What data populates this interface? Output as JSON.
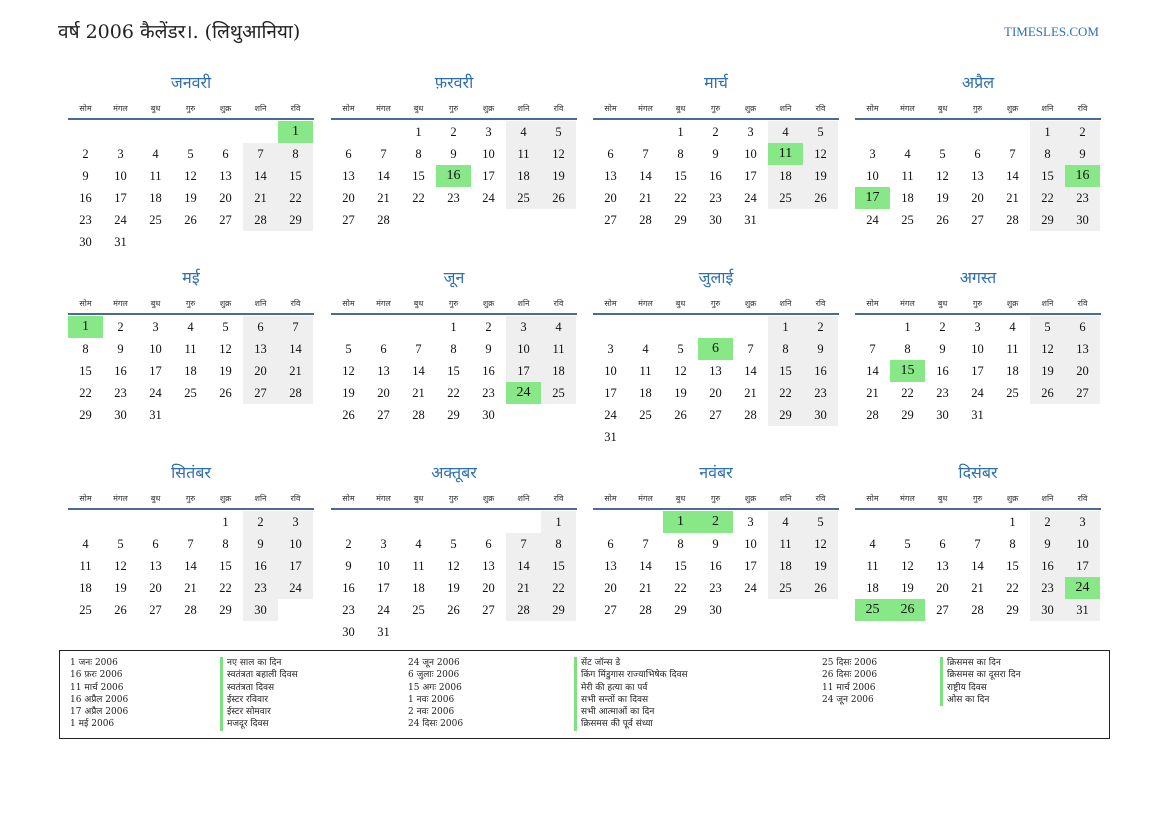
{
  "header": {
    "title": "वर्ष 2006 कैलेंडर।. (लिथुआनिया)",
    "brand": "TIMESLES.COM"
  },
  "weekdays": [
    "सोम",
    "मंगल",
    "बुध",
    "गुरु",
    "शुक्र",
    "शनि",
    "रवि"
  ],
  "months": [
    {
      "name": "जनवरी",
      "offset": 6,
      "days": 31,
      "holidays": [
        1
      ]
    },
    {
      "name": "फ़रवरी",
      "offset": 2,
      "days": 28,
      "holidays": [
        16
      ]
    },
    {
      "name": "मार्च",
      "offset": 2,
      "days": 31,
      "holidays": [
        11
      ]
    },
    {
      "name": "अप्रैल",
      "offset": 5,
      "days": 30,
      "holidays": [
        16,
        17
      ]
    },
    {
      "name": "मई",
      "offset": 0,
      "days": 31,
      "holidays": [
        1
      ]
    },
    {
      "name": "जून",
      "offset": 3,
      "days": 30,
      "holidays": [
        24
      ]
    },
    {
      "name": "जुलाई",
      "offset": 5,
      "days": 31,
      "holidays": [
        6
      ]
    },
    {
      "name": "अगस्त",
      "offset": 1,
      "days": 31,
      "holidays": [
        15
      ]
    },
    {
      "name": "सितंबर",
      "offset": 4,
      "days": 30,
      "holidays": []
    },
    {
      "name": "अक्तूबर",
      "offset": 6,
      "days": 31,
      "holidays": []
    },
    {
      "name": "नवंबर",
      "offset": 2,
      "days": 30,
      "holidays": [
        1,
        2
      ]
    },
    {
      "name": "दिसंबर",
      "offset": 4,
      "days": 31,
      "holidays": [
        24,
        25,
        26
      ]
    }
  ],
  "holiday_list": {
    "col1_dates": [
      "1 जनः 2006",
      "16 फ़रः 2006",
      "11 मार्च 2006",
      "16 अप्रैल 2006",
      "17 अप्रैल 2006",
      "1 मई 2006"
    ],
    "col1_names": [
      "नए साल का दिन",
      "स्वतंत्रता बहाली दिवस",
      "स्वतंत्रता दिवस",
      "ईस्टर रविवार",
      "ईस्टर सोमवार",
      "मजदूर दिवस"
    ],
    "col2_dates": [
      "24 जून 2006",
      "6 जुलाः 2006",
      "15 अगः 2006",
      "1 नवः 2006",
      "2 नवः 2006",
      "24 दिसः 2006"
    ],
    "col2_names": [
      "सेंट जॉन्स डे",
      "किंग मिंडुगास राज्याभिषेक दिवस",
      "मेरी की हत्या का पर्व",
      "सभी सन्तों का दिवस",
      "सभी आत्माओं का दिन",
      "क्रिसमस की पूर्व संध्या"
    ],
    "col3_dates": [
      "25 दिसः 2006",
      "26 दिसः 2006",
      "11 मार्च 2006",
      "24 जून 2006"
    ],
    "col3_names": [
      "क्रिसमस का दिन",
      "क्रिसमस का दूसरा दिन",
      "राष्ट्रीय दिवस",
      "ओस का दिन"
    ]
  },
  "colors": {
    "accent": "#2e6fb0",
    "holiday": "#88e888",
    "weekend": "#efefef",
    "rule": "#4a6a97"
  }
}
